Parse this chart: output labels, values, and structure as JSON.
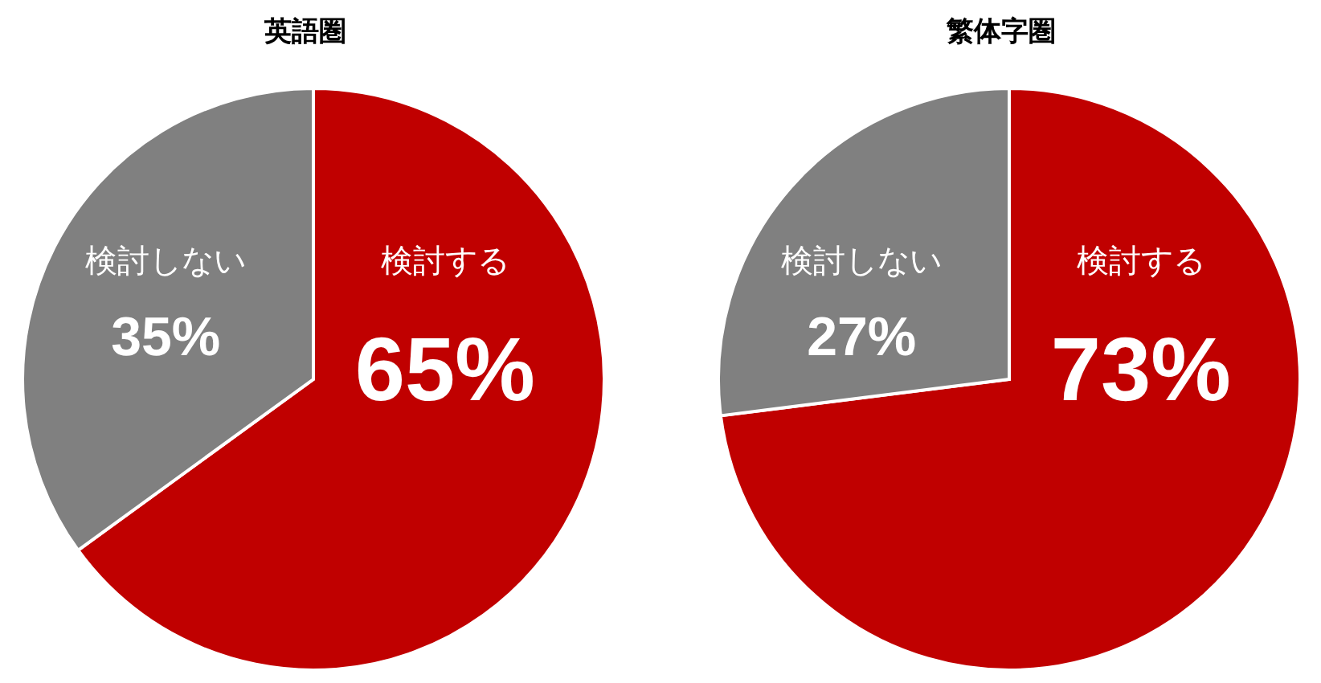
{
  "chart_data": [
    {
      "type": "pie",
      "title": "英語圏",
      "categories": [
        "検討する",
        "検討しない"
      ],
      "values": [
        65,
        35
      ],
      "value_labels": [
        "65%",
        "35%"
      ],
      "colors": [
        "#c00000",
        "#808080"
      ]
    },
    {
      "type": "pie",
      "title": "繁体字圏",
      "categories": [
        "検討する",
        "検討しない"
      ],
      "values": [
        73,
        27
      ],
      "value_labels": [
        "73%",
        "27%"
      ],
      "colors": [
        "#c00000",
        "#808080"
      ]
    }
  ]
}
